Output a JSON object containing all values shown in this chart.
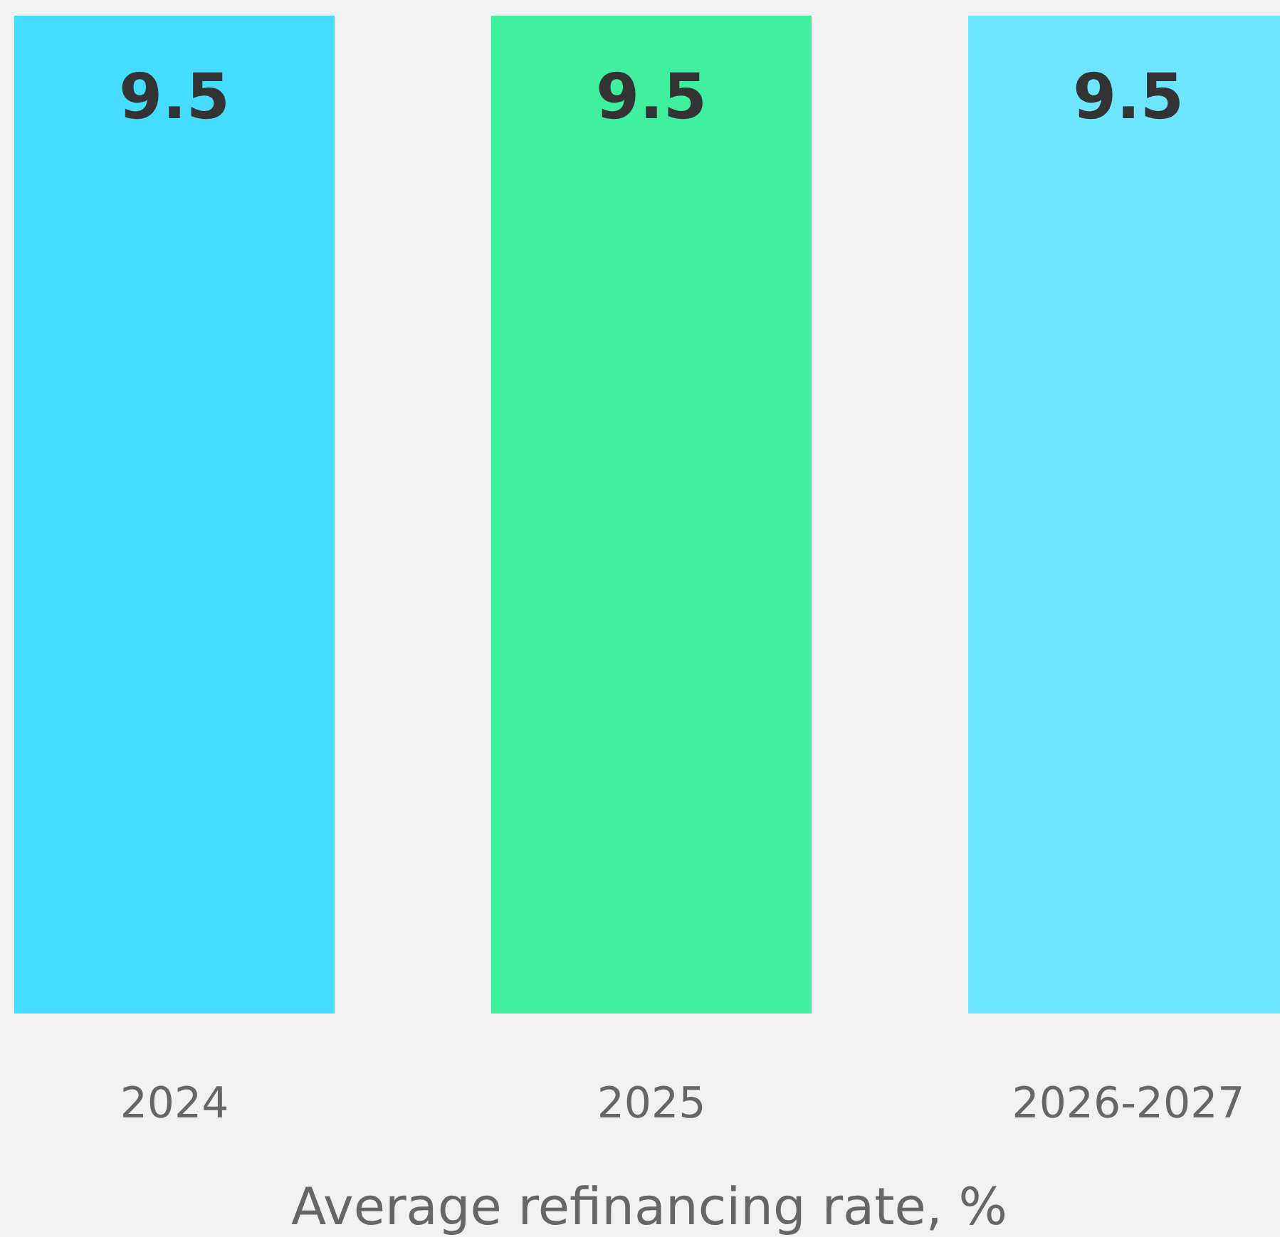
{
  "chart_data": {
    "type": "bar",
    "xlabel": "Average refinancing rate, %",
    "categories": [
      "2024",
      "2025",
      "2026-2027"
    ],
    "values": [
      9.5,
      9.5,
      9.5
    ],
    "colors": [
      "#45dcff",
      "#3fee9e",
      "#6de5ff"
    ],
    "data_labels": true
  }
}
